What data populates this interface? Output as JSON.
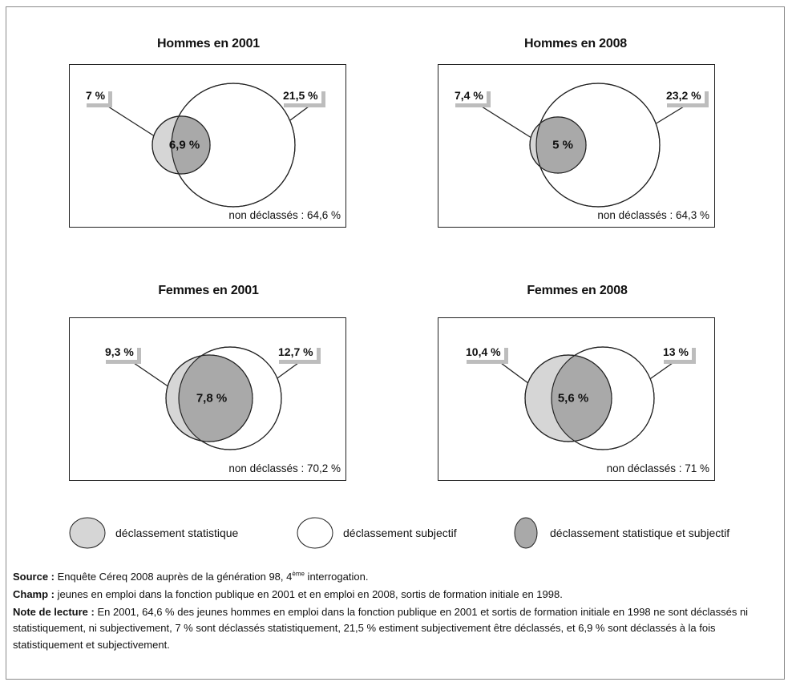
{
  "panels": [
    {
      "title": "Hommes en 2001",
      "statistique": "7 %",
      "subjectif": "21,5 %",
      "les_deux": "6,9 %",
      "non_declasses": "non déclassés : 64,6 %"
    },
    {
      "title": "Hommes en 2008",
      "statistique": "7,4 %",
      "subjectif": "23,2 %",
      "les_deux": "5 %",
      "non_declasses": "non déclassés : 64,3 %"
    },
    {
      "title": "Femmes en 2001",
      "statistique": "9,3 %",
      "subjectif": "12,7 %",
      "les_deux": "7,8 %",
      "non_declasses": "non déclassés : 70,2 %"
    },
    {
      "title": "Femmes en 2008",
      "statistique": "10,4 %",
      "subjectif": "13 %",
      "les_deux": "5,6 %",
      "non_declasses": "non déclassés : 71 %"
    }
  ],
  "legend": {
    "statistique": "déclassement statistique",
    "subjectif": "déclassement subjectif",
    "les_deux": "déclassement statistique et subjectif"
  },
  "colors": {
    "statistique": "#d6d6d6",
    "subjectif": "#ffffff",
    "les_deux": "#a9a9a9",
    "outline": "#222222"
  },
  "notes": {
    "source_label": "Source :",
    "source_text_a": "Enquête Céreq 2008 auprès de la génération 98, 4",
    "source_sup": "ème",
    "source_text_b": " interrogation.",
    "champ_label": "Champ :",
    "champ_text": "jeunes en emploi dans la fonction publique en 2001 et en emploi en 2008, sortis de formation initiale en 1998.",
    "lecture_label": "Note de lecture :",
    "lecture_text": "En 2001, 64,6  % des jeunes hommes en emploi dans la fonction publique en 2001 et sortis de formation initiale en 1998 ne sont déclassés ni statistiquement, ni subjectivement, 7 % sont déclassés statistiquement, 21,5 % estiment subjectivement être déclassés, et 6,9 % sont déclassés à la fois statistiquement et subjectivement."
  }
}
